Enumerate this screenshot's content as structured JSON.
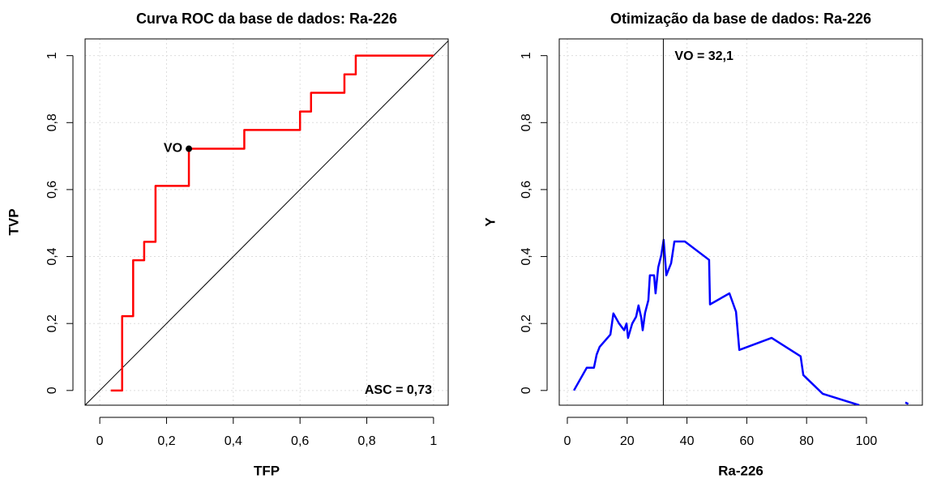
{
  "chart_data": [
    {
      "type": "line",
      "title": "Curva ROC da base de dados: Ra-226",
      "x_label": "TFP",
      "y_label": "TVP",
      "xlim": [
        -0.044,
        1.044
      ],
      "ylim": [
        -0.044,
        1.05
      ],
      "xticks": [
        0,
        {
          "value": 0.2,
          "label": "0,2"
        },
        {
          "value": 0.4,
          "label": "0,4"
        },
        {
          "value": 0.6,
          "label": "0,6"
        },
        {
          "value": 0.8,
          "label": "0,8"
        },
        1
      ],
      "yticks": [
        0,
        {
          "value": 0.2,
          "label": "0,2"
        },
        {
          "value": 0.4,
          "label": "0,4"
        },
        {
          "value": 0.6,
          "label": "0,6"
        },
        {
          "value": 0.8,
          "label": "0,8"
        },
        1
      ],
      "grid": true,
      "x": [
        0.033,
        0.067,
        0.067,
        0.1,
        0.1,
        0.133,
        0.133,
        0.167,
        0.167,
        0.267,
        0.267,
        0.433,
        0.433,
        0.6,
        0.6,
        0.633,
        0.633,
        0.733,
        0.733,
        0.767,
        0.767,
        1.0
      ],
      "series": [
        {
          "color": "#ff0000",
          "values": [
            0,
            0,
            0.222,
            0.222,
            0.389,
            0.389,
            0.444,
            0.444,
            0.611,
            0.611,
            0.722,
            0.722,
            0.778,
            0.778,
            0.833,
            0.833,
            0.889,
            0.889,
            0.944,
            0.944,
            1,
            1
          ]
        }
      ],
      "point": {
        "x": 0.267,
        "y": 0.722,
        "label": "VO"
      },
      "annotation": "ASC = 0,73"
    },
    {
      "type": "line",
      "title": "Otimização da base de dados: Ra-226",
      "x_label": "Ra-226",
      "y_label": "Y",
      "xlim": [
        -2.7,
        118.7
      ],
      "ylim": [
        -0.044,
        1.05
      ],
      "xticks": [
        0,
        20,
        40,
        60,
        80,
        100
      ],
      "yticks": [
        0,
        {
          "value": 0.2,
          "label": "0,2"
        },
        {
          "value": 0.4,
          "label": "0,4"
        },
        {
          "value": 0.6,
          "label": "0,6"
        },
        {
          "value": 0.8,
          "label": "0,8"
        },
        1
      ],
      "grid": true,
      "x": [
        2.2,
        6.5,
        8.9,
        9.8,
        10.8,
        14.4,
        15.4,
        17.3,
        19,
        19.8,
        20.3,
        21.7,
        23,
        23.8,
        24.7,
        25.2,
        26,
        27.1,
        27.6,
        29,
        29.5,
        30.4,
        31.4,
        32.2,
        33.1,
        34.7,
        35.8,
        39.3,
        47.4,
        47.7,
        54.2,
        56.4,
        57.5,
        68.3,
        78,
        78.9,
        85.4,
        97.6,
        null,
        113,
        114
      ],
      "series": [
        {
          "color": "#0000ff",
          "values": [
            0,
            0.068,
            0.068,
            0.107,
            0.13,
            0.167,
            0.23,
            0.2,
            0.18,
            0.2,
            0.157,
            0.2,
            0.22,
            0.254,
            0.218,
            0.18,
            0.232,
            0.27,
            0.344,
            0.344,
            0.29,
            0.368,
            0.404,
            0.45,
            0.344,
            0.38,
            0.445,
            0.445,
            0.39,
            0.257,
            0.29,
            0.235,
            0.121,
            0.157,
            0.102,
            0.046,
            -0.01,
            -0.044,
            null,
            -0.036,
            -0.04
          ]
        }
      ],
      "vline": 32.1,
      "vline_label": "VO = 32,1"
    }
  ]
}
